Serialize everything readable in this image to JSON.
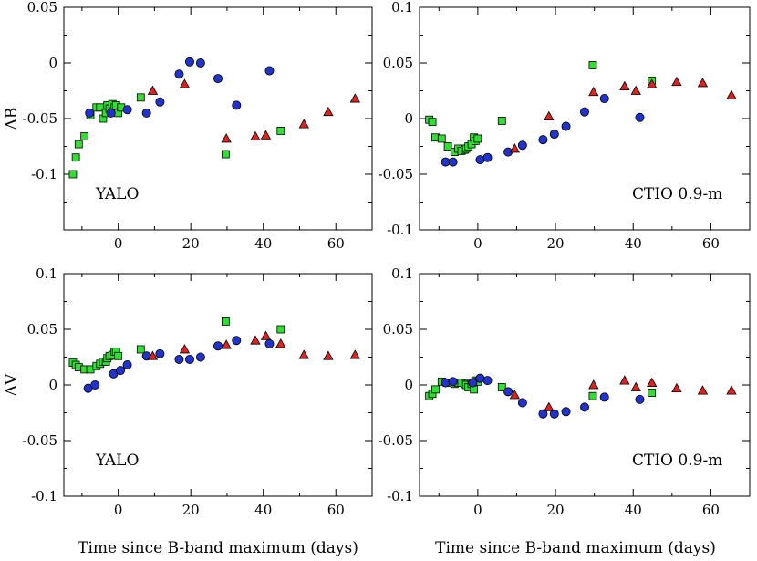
{
  "chart_data": [
    {
      "type": "scatter",
      "id": "yalo-b",
      "label": "YALO",
      "ylabel": "ΔB",
      "xlabel": "",
      "xlim": [
        -15,
        70
      ],
      "ylim": [
        -0.15,
        0.05
      ],
      "xticks": [
        -20,
        0,
        20,
        40,
        60
      ],
      "xtick_labels": [
        "",
        "0",
        "20",
        "40",
        "60"
      ],
      "yticks": [
        -0.15,
        -0.1,
        -0.05,
        0,
        0.05
      ],
      "ytick_labels": [
        "",
        "-0.1",
        "-0.05",
        "0",
        "0.05"
      ],
      "series": [
        {
          "name": "squares",
          "marker": "square",
          "color": "#33dd33",
          "points": [
            [
              -12.5,
              -0.1
            ],
            [
              -11.7,
              -0.085
            ],
            [
              -10.9,
              -0.073
            ],
            [
              -9.3,
              -0.066
            ],
            [
              -7.7,
              -0.047
            ],
            [
              -6.0,
              -0.04
            ],
            [
              -5.0,
              -0.04
            ],
            [
              -4.2,
              -0.05
            ],
            [
              -3.4,
              -0.045
            ],
            [
              -3.0,
              -0.038
            ],
            [
              -2.4,
              -0.041
            ],
            [
              -1.6,
              -0.037
            ],
            [
              -1.0,
              -0.04
            ],
            [
              -0.6,
              -0.038
            ],
            [
              0.0,
              -0.045
            ],
            [
              0.8,
              -0.04
            ],
            [
              6.2,
              -0.031
            ],
            [
              29.6,
              -0.082
            ],
            [
              44.8,
              -0.061
            ]
          ]
        },
        {
          "name": "circles",
          "marker": "circle",
          "color": "#2233cc",
          "points": [
            [
              -7.9,
              -0.045
            ],
            [
              -2.0,
              -0.045
            ],
            [
              2.5,
              -0.042
            ],
            [
              7.8,
              -0.045
            ],
            [
              11.5,
              -0.035
            ],
            [
              16.8,
              -0.01
            ],
            [
              19.7,
              0.001
            ],
            [
              22.7,
              0.0
            ],
            [
              27.5,
              -0.014
            ],
            [
              32.6,
              -0.038
            ],
            [
              41.7,
              -0.007
            ]
          ]
        },
        {
          "name": "triangles",
          "marker": "triangle",
          "color": "#dd2222",
          "points": [
            [
              9.5,
              -0.025
            ],
            [
              18.3,
              -0.019
            ],
            [
              29.8,
              -0.068
            ],
            [
              37.8,
              -0.066
            ],
            [
              40.7,
              -0.065
            ],
            [
              51.2,
              -0.055
            ],
            [
              57.9,
              -0.044
            ],
            [
              65.3,
              -0.032
            ]
          ]
        }
      ]
    },
    {
      "type": "scatter",
      "id": "ctio-b",
      "label": "CTIO 0.9-m",
      "ylabel": "",
      "xlabel": "",
      "xlim": [
        -15,
        70
      ],
      "ylim": [
        -0.1,
        0.1
      ],
      "xticks": [
        -20,
        0,
        20,
        40,
        60
      ],
      "xtick_labels": [
        "",
        "0",
        "20",
        "40",
        "60"
      ],
      "yticks": [
        -0.1,
        -0.05,
        0,
        0.05,
        0.1
      ],
      "ytick_labels": [
        "-0.1",
        "-0.05",
        "0",
        "0.05",
        "0.1"
      ],
      "series": [
        {
          "name": "squares",
          "marker": "square",
          "color": "#33dd33",
          "points": [
            [
              -12.5,
              -0.001
            ],
            [
              -11.7,
              -0.003
            ],
            [
              -10.9,
              -0.017
            ],
            [
              -9.3,
              -0.018
            ],
            [
              -7.7,
              -0.025
            ],
            [
              -6.0,
              -0.03
            ],
            [
              -5.0,
              -0.027
            ],
            [
              -4.2,
              -0.029
            ],
            [
              -3.4,
              -0.028
            ],
            [
              -3.0,
              -0.027
            ],
            [
              -2.4,
              -0.025
            ],
            [
              -1.6,
              -0.023
            ],
            [
              -1.0,
              -0.017
            ],
            [
              -0.6,
              -0.02
            ],
            [
              0.0,
              -0.018
            ],
            [
              6.2,
              -0.002
            ],
            [
              29.6,
              0.048
            ],
            [
              44.8,
              0.034
            ]
          ]
        },
        {
          "name": "circles",
          "marker": "circle",
          "color": "#2233cc",
          "points": [
            [
              -8.3,
              -0.039
            ],
            [
              -6.4,
              -0.039
            ],
            [
              0.6,
              -0.037
            ],
            [
              2.5,
              -0.035
            ],
            [
              7.8,
              -0.03
            ],
            [
              11.5,
              -0.024
            ],
            [
              16.8,
              -0.019
            ],
            [
              19.7,
              -0.014
            ],
            [
              22.7,
              -0.007
            ],
            [
              27.5,
              0.006
            ],
            [
              32.6,
              0.018
            ],
            [
              41.7,
              0.001
            ]
          ]
        },
        {
          "name": "triangles",
          "marker": "triangle",
          "color": "#dd2222",
          "points": [
            [
              9.5,
              -0.027
            ],
            [
              18.3,
              0.002
            ],
            [
              29.8,
              0.024
            ],
            [
              37.8,
              0.029
            ],
            [
              40.7,
              0.025
            ],
            [
              44.8,
              0.031
            ],
            [
              51.2,
              0.033
            ],
            [
              57.9,
              0.032
            ],
            [
              65.3,
              0.021
            ]
          ]
        }
      ]
    },
    {
      "type": "scatter",
      "id": "yalo-v",
      "label": "YALO",
      "ylabel": "ΔV",
      "xlabel": "Time since B-band maximum (days)",
      "xlim": [
        -15,
        70
      ],
      "ylim": [
        -0.1,
        0.1
      ],
      "xticks": [
        -20,
        0,
        20,
        40,
        60
      ],
      "xtick_labels": [
        "",
        "0",
        "20",
        "40",
        "60"
      ],
      "yticks": [
        -0.1,
        -0.05,
        0,
        0.05,
        0.1
      ],
      "ytick_labels": [
        "-0.1",
        "-0.05",
        "0",
        "0.05",
        "0.1"
      ],
      "series": [
        {
          "name": "squares",
          "marker": "square",
          "color": "#33dd33",
          "points": [
            [
              -12.5,
              0.02
            ],
            [
              -11.7,
              0.018
            ],
            [
              -10.9,
              0.016
            ],
            [
              -9.3,
              0.014
            ],
            [
              -7.7,
              0.014
            ],
            [
              -6.0,
              0.017
            ],
            [
              -5.0,
              0.019
            ],
            [
              -4.2,
              0.021
            ],
            [
              -3.4,
              0.021
            ],
            [
              -3.0,
              0.024
            ],
            [
              -2.4,
              0.026
            ],
            [
              -1.6,
              0.027
            ],
            [
              -1.0,
              0.03
            ],
            [
              -0.6,
              0.03
            ],
            [
              0.0,
              0.026
            ],
            [
              6.2,
              0.032
            ],
            [
              29.6,
              0.057
            ],
            [
              44.8,
              0.05
            ]
          ]
        },
        {
          "name": "circles",
          "marker": "circle",
          "color": "#2233cc",
          "points": [
            [
              -8.3,
              -0.003
            ],
            [
              -6.4,
              0.0
            ],
            [
              -1.3,
              0.01
            ],
            [
              0.6,
              0.013
            ],
            [
              2.5,
              0.018
            ],
            [
              7.8,
              0.026
            ],
            [
              11.5,
              0.028
            ],
            [
              16.8,
              0.023
            ],
            [
              19.7,
              0.023
            ],
            [
              22.7,
              0.025
            ],
            [
              27.5,
              0.035
            ],
            [
              32.6,
              0.04
            ],
            [
              41.7,
              0.037
            ]
          ]
        },
        {
          "name": "triangles",
          "marker": "triangle",
          "color": "#dd2222",
          "points": [
            [
              9.5,
              0.026
            ],
            [
              18.3,
              0.032
            ],
            [
              29.8,
              0.036
            ],
            [
              37.8,
              0.04
            ],
            [
              40.7,
              0.044
            ],
            [
              44.8,
              0.037
            ],
            [
              51.2,
              0.027
            ],
            [
              57.9,
              0.026
            ],
            [
              65.3,
              0.027
            ]
          ]
        }
      ]
    },
    {
      "type": "scatter",
      "id": "ctio-v",
      "label": "CTIO 0.9-m",
      "ylabel": "",
      "xlabel": "Time since B-band maximum (days)",
      "xlim": [
        -15,
        70
      ],
      "ylim": [
        -0.1,
        0.1
      ],
      "xticks": [
        -20,
        0,
        20,
        40,
        60
      ],
      "xtick_labels": [
        "",
        "0",
        "20",
        "40",
        "60"
      ],
      "yticks": [
        -0.1,
        -0.05,
        0,
        0.05,
        0.1
      ],
      "ytick_labels": [
        "-0.1",
        "-0.05",
        "0",
        "0.05",
        "0.1"
      ],
      "series": [
        {
          "name": "squares",
          "marker": "square",
          "color": "#33dd33",
          "points": [
            [
              -12.5,
              -0.01
            ],
            [
              -11.7,
              -0.008
            ],
            [
              -10.9,
              -0.004
            ],
            [
              -9.3,
              0.003
            ],
            [
              -7.7,
              0.002
            ],
            [
              -6.0,
              0.001
            ],
            [
              -5.0,
              0.002
            ],
            [
              -4.2,
              0.002
            ],
            [
              -3.4,
              0.001
            ],
            [
              -3.0,
              0.0
            ],
            [
              -2.4,
              -0.002
            ],
            [
              -1.6,
              0.001
            ],
            [
              -1.0,
              -0.004
            ],
            [
              -0.6,
              0.004
            ],
            [
              0.0,
              0.003
            ],
            [
              6.2,
              -0.002
            ],
            [
              29.6,
              -0.01
            ],
            [
              44.8,
              -0.007
            ]
          ]
        },
        {
          "name": "circles",
          "marker": "circle",
          "color": "#2233cc",
          "points": [
            [
              -8.3,
              0.002
            ],
            [
              -6.4,
              0.003
            ],
            [
              -1.3,
              0.002
            ],
            [
              0.6,
              0.006
            ],
            [
              2.5,
              0.004
            ],
            [
              7.8,
              -0.006
            ],
            [
              11.5,
              -0.016
            ],
            [
              16.8,
              -0.026
            ],
            [
              19.7,
              -0.026
            ],
            [
              22.7,
              -0.024
            ],
            [
              27.5,
              -0.02
            ],
            [
              32.6,
              -0.011
            ],
            [
              41.7,
              -0.013
            ]
          ]
        },
        {
          "name": "triangles",
          "marker": "triangle",
          "color": "#dd2222",
          "points": [
            [
              9.5,
              -0.009
            ],
            [
              18.3,
              -0.02
            ],
            [
              29.8,
              0.0
            ],
            [
              37.8,
              0.004
            ],
            [
              40.7,
              -0.002
            ],
            [
              44.8,
              0.002
            ],
            [
              51.2,
              -0.003
            ],
            [
              57.9,
              -0.005
            ],
            [
              65.3,
              -0.005
            ]
          ]
        }
      ]
    }
  ]
}
